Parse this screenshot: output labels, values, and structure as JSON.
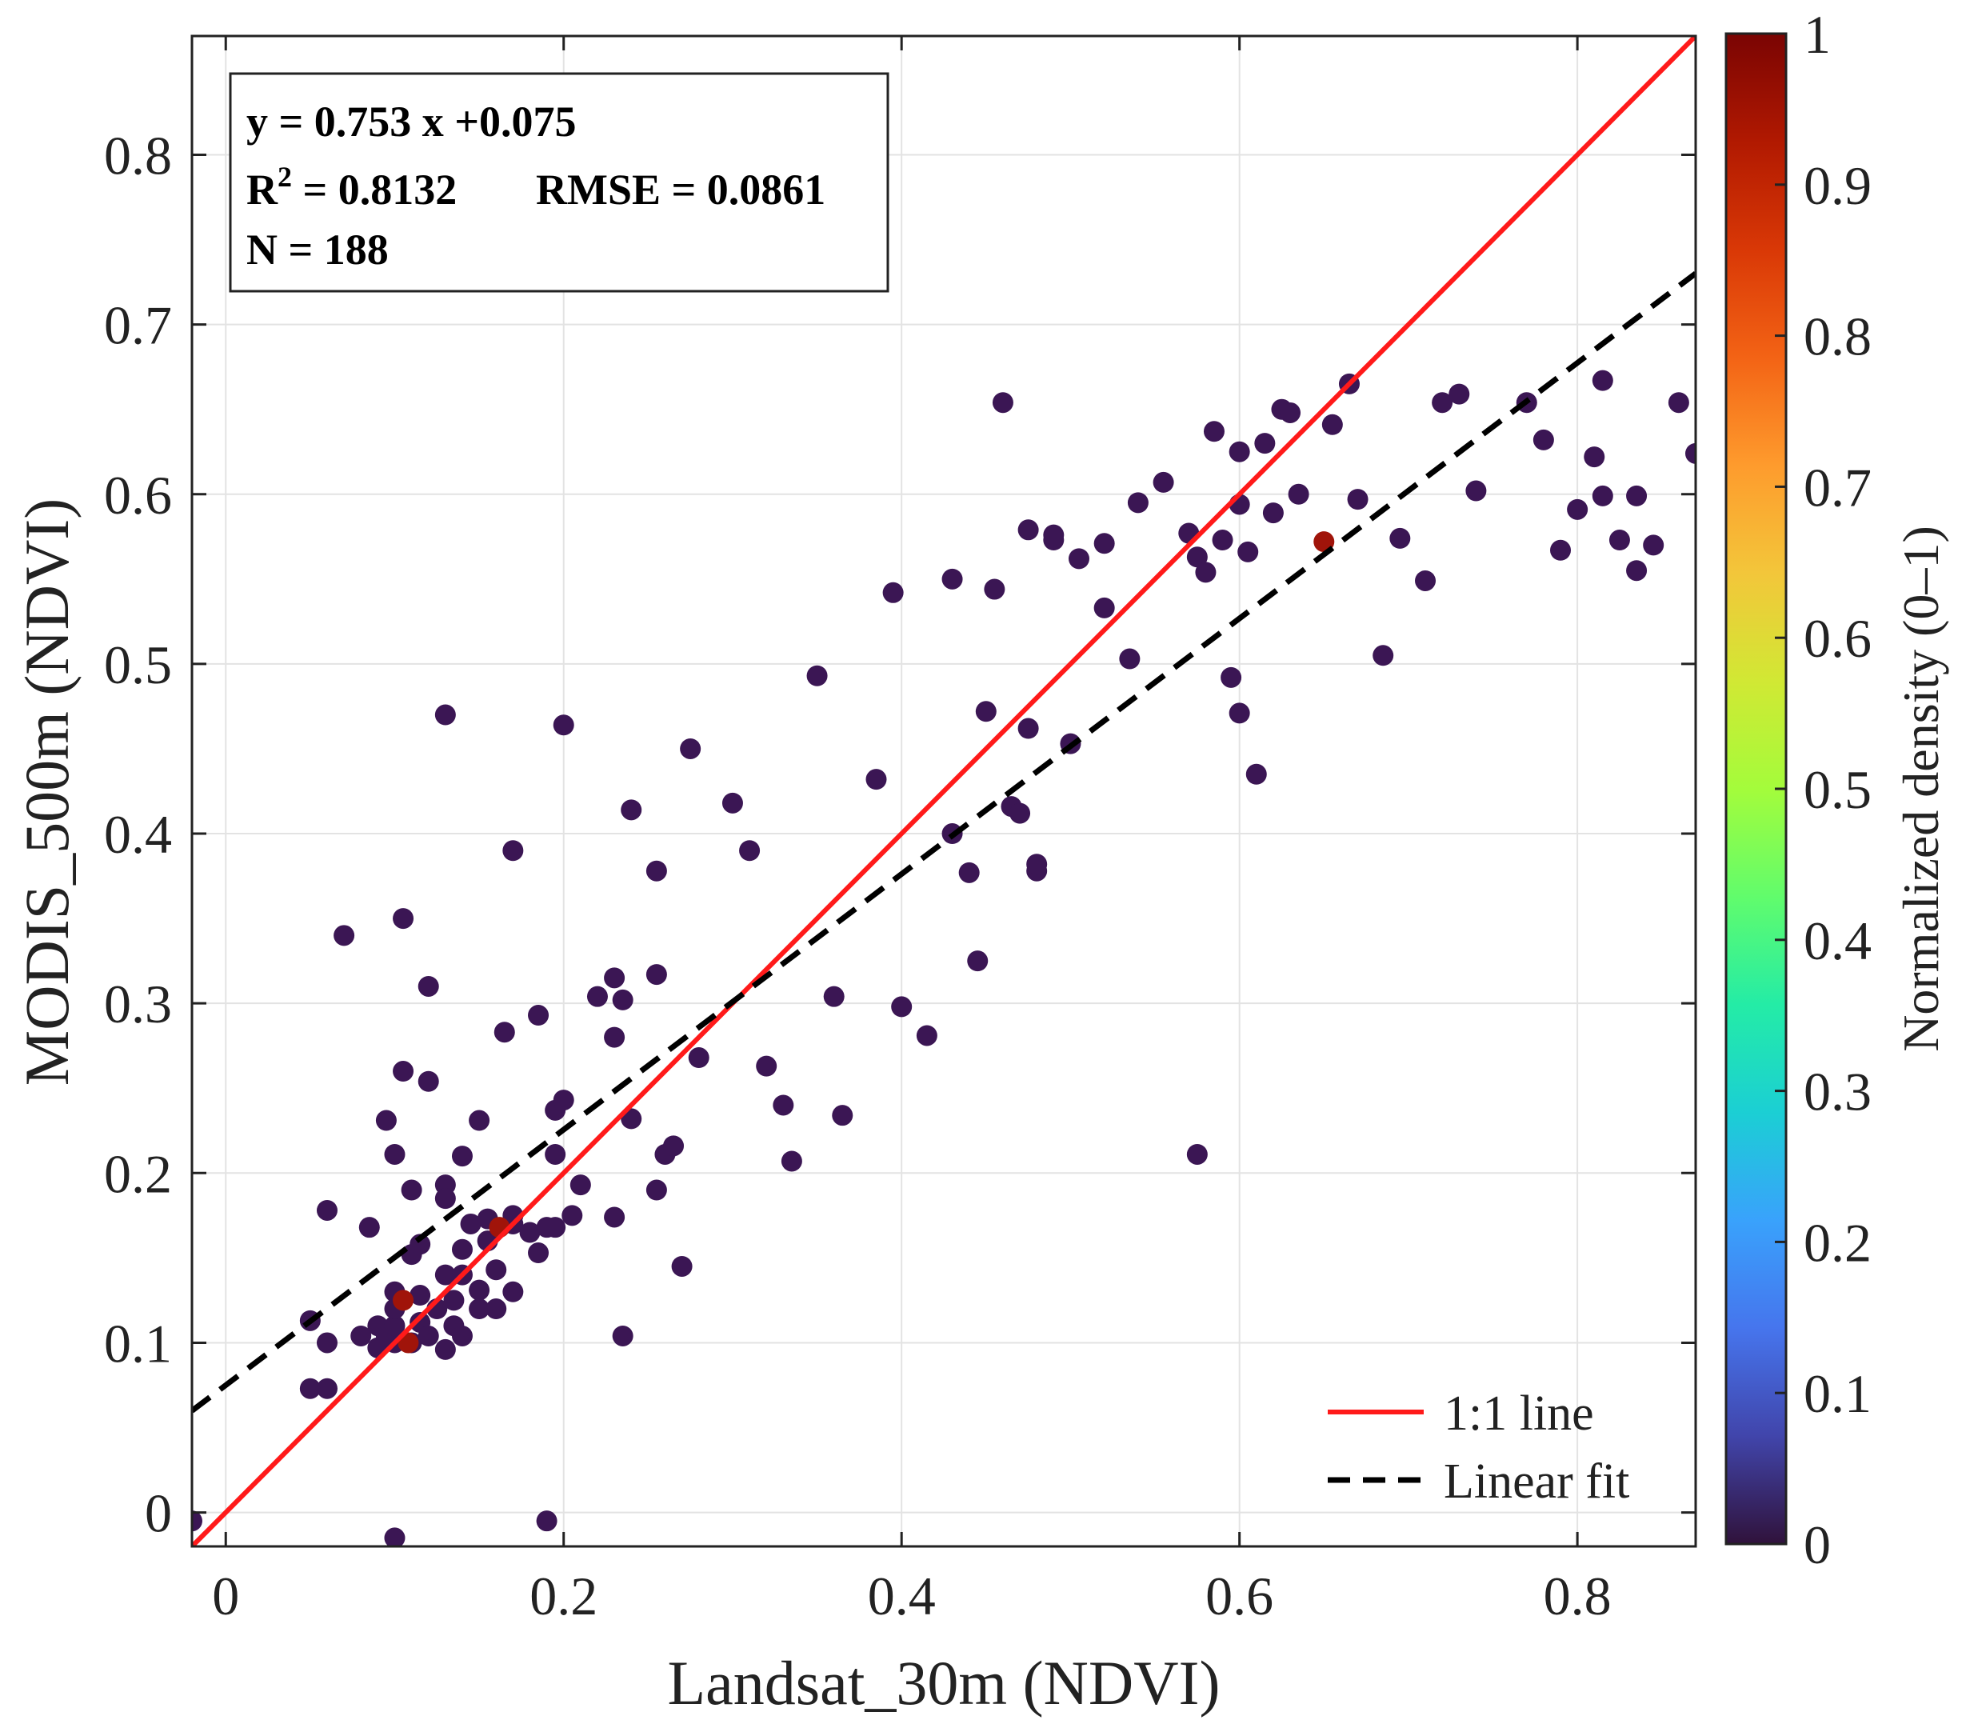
{
  "chart_data": {
    "type": "scatter",
    "xlabel": "Landsat_30m (NDVI)",
    "ylabel": "MODIS_500m (NDVI)",
    "xlim": [
      -0.02,
      0.87
    ],
    "ylim": [
      -0.02,
      0.87
    ],
    "xticks": [
      0,
      0.2,
      0.4,
      0.6,
      0.8
    ],
    "yticks": [
      0,
      0.1,
      0.2,
      0.3,
      0.4,
      0.5,
      0.6,
      0.7,
      0.8
    ],
    "grid": true,
    "stats": {
      "equation": "y = 0.753 x +0.075",
      "r2_label": "R",
      "r2_sup": "2",
      "r2_value": " = 0.8132",
      "rmse": "RMSE = 0.0861",
      "n": "N = 188"
    },
    "lines": [
      {
        "name": "1:1 line",
        "slope": 1,
        "intercept": 0,
        "color": "#ff1a1a",
        "style": "solid"
      },
      {
        "name": "Linear fit",
        "slope": 0.753,
        "intercept": 0.075,
        "color": "#000000",
        "style": "dashed"
      }
    ],
    "legend_position": "bottom-right",
    "colorbar": {
      "label": "Normalized density (0–1)",
      "ticks": [
        "0",
        "0.1",
        "0.2",
        "0.3",
        "0.4",
        "0.5",
        "0.6",
        "0.7",
        "0.8",
        "0.9",
        "1"
      ],
      "colors": [
        "#30123b",
        "#4145ab",
        "#4675ed",
        "#39a2fc",
        "#1bcfd4",
        "#24eca6",
        "#61fc6c",
        "#a4fc3b",
        "#d1e834",
        "#f3c63a",
        "#fe9b2d",
        "#f36315",
        "#d93806",
        "#b11901",
        "#7a0403"
      ]
    },
    "point_color_low": "#3b1654",
    "point_color_high": "#a0140a",
    "points": [
      [
        -0.02,
        -0.005
      ],
      [
        0.1,
        -0.015
      ],
      [
        0.19,
        -0.005
      ],
      [
        0.05,
        0.073
      ],
      [
        0.06,
        0.073
      ],
      [
        0.05,
        0.113
      ],
      [
        0.06,
        0.1
      ],
      [
        0.06,
        0.178
      ],
      [
        0.07,
        0.34
      ],
      [
        0.08,
        0.104
      ],
      [
        0.085,
        0.168
      ],
      [
        0.09,
        0.097
      ],
      [
        0.09,
        0.11
      ],
      [
        0.095,
        0.104
      ],
      [
        0.095,
        0.231
      ],
      [
        0.1,
        0.1
      ],
      [
        0.1,
        0.11
      ],
      [
        0.1,
        0.12
      ],
      [
        0.1,
        0.13
      ],
      [
        0.1,
        0.211
      ],
      [
        0.105,
        0.26
      ],
      [
        0.105,
        0.35
      ],
      [
        0.11,
        0.1
      ],
      [
        0.11,
        0.152
      ],
      [
        0.11,
        0.19
      ],
      [
        0.115,
        0.112
      ],
      [
        0.115,
        0.128
      ],
      [
        0.115,
        0.158
      ],
      [
        0.12,
        0.254
      ],
      [
        0.12,
        0.31
      ],
      [
        0.12,
        0.104
      ],
      [
        0.125,
        0.12
      ],
      [
        0.13,
        0.096
      ],
      [
        0.13,
        0.14
      ],
      [
        0.13,
        0.193
      ],
      [
        0.13,
        0.185
      ],
      [
        0.13,
        0.47
      ],
      [
        0.135,
        0.11
      ],
      [
        0.135,
        0.125
      ],
      [
        0.14,
        0.104
      ],
      [
        0.14,
        0.14
      ],
      [
        0.14,
        0.155
      ],
      [
        0.14,
        0.21
      ],
      [
        0.145,
        0.17
      ],
      [
        0.15,
        0.12
      ],
      [
        0.15,
        0.131
      ],
      [
        0.15,
        0.231
      ],
      [
        0.155,
        0.16
      ],
      [
        0.155,
        0.173
      ],
      [
        0.16,
        0.143
      ],
      [
        0.16,
        0.12
      ],
      [
        0.165,
        0.283
      ],
      [
        0.17,
        0.13
      ],
      [
        0.17,
        0.17
      ],
      [
        0.17,
        0.175
      ],
      [
        0.17,
        0.39
      ],
      [
        0.18,
        0.165
      ],
      [
        0.185,
        0.153
      ],
      [
        0.185,
        0.293
      ],
      [
        0.19,
        0.168
      ],
      [
        0.195,
        0.168
      ],
      [
        0.195,
        0.211
      ],
      [
        0.195,
        0.237
      ],
      [
        0.2,
        0.243
      ],
      [
        0.2,
        0.464
      ],
      [
        0.205,
        0.175
      ],
      [
        0.21,
        0.193
      ],
      [
        0.22,
        0.304
      ],
      [
        0.23,
        0.28
      ],
      [
        0.23,
        0.174
      ],
      [
        0.23,
        0.315
      ],
      [
        0.235,
        0.104
      ],
      [
        0.235,
        0.302
      ],
      [
        0.24,
        0.232
      ],
      [
        0.24,
        0.414
      ],
      [
        0.255,
        0.19
      ],
      [
        0.255,
        0.317
      ],
      [
        0.255,
        0.378
      ],
      [
        0.26,
        0.211
      ],
      [
        0.265,
        0.216
      ],
      [
        0.27,
        0.145
      ],
      [
        0.275,
        0.45
      ],
      [
        0.28,
        0.268
      ],
      [
        0.3,
        0.418
      ],
      [
        0.31,
        0.39
      ],
      [
        0.32,
        0.263
      ],
      [
        0.33,
        0.24
      ],
      [
        0.335,
        0.207
      ],
      [
        0.35,
        0.493
      ],
      [
        0.36,
        0.304
      ],
      [
        0.365,
        0.234
      ],
      [
        0.385,
        0.432
      ],
      [
        0.395,
        0.542
      ],
      [
        0.4,
        0.298
      ],
      [
        0.415,
        0.281
      ],
      [
        0.43,
        0.4
      ],
      [
        0.43,
        0.55
      ],
      [
        0.44,
        0.377
      ],
      [
        0.445,
        0.325
      ],
      [
        0.45,
        0.472
      ],
      [
        0.455,
        0.544
      ],
      [
        0.46,
        0.654
      ],
      [
        0.465,
        0.416
      ],
      [
        0.47,
        0.412
      ],
      [
        0.475,
        0.579
      ],
      [
        0.475,
        0.462
      ],
      [
        0.48,
        0.378
      ],
      [
        0.48,
        0.382
      ],
      [
        0.49,
        0.573
      ],
      [
        0.49,
        0.576
      ],
      [
        0.5,
        0.453
      ],
      [
        0.505,
        0.562
      ],
      [
        0.52,
        0.533
      ],
      [
        0.52,
        0.571
      ],
      [
        0.535,
        0.503
      ],
      [
        0.54,
        0.595
      ],
      [
        0.555,
        0.607
      ],
      [
        0.57,
        0.577
      ],
      [
        0.575,
        0.211
      ],
      [
        0.575,
        0.563
      ],
      [
        0.58,
        0.554
      ],
      [
        0.585,
        0.637
      ],
      [
        0.59,
        0.573
      ],
      [
        0.595,
        0.492
      ],
      [
        0.6,
        0.471
      ],
      [
        0.6,
        0.594
      ],
      [
        0.6,
        0.625
      ],
      [
        0.605,
        0.566
      ],
      [
        0.61,
        0.435
      ],
      [
        0.615,
        0.63
      ],
      [
        0.62,
        0.589
      ],
      [
        0.625,
        0.65
      ],
      [
        0.63,
        0.648
      ],
      [
        0.635,
        0.6
      ],
      [
        0.655,
        0.641
      ],
      [
        0.665,
        0.665
      ],
      [
        0.67,
        0.597
      ],
      [
        0.685,
        0.505
      ],
      [
        0.695,
        0.574
      ],
      [
        0.71,
        0.549
      ],
      [
        0.72,
        0.654
      ],
      [
        0.73,
        0.659
      ],
      [
        0.74,
        0.602
      ],
      [
        0.77,
        0.654
      ],
      [
        0.78,
        0.632
      ],
      [
        0.79,
        0.567
      ],
      [
        0.8,
        0.591
      ],
      [
        0.81,
        0.622
      ],
      [
        0.815,
        0.667
      ],
      [
        0.815,
        0.599
      ],
      [
        0.825,
        0.573
      ],
      [
        0.835,
        0.599
      ],
      [
        0.835,
        0.555
      ],
      [
        0.845,
        0.57
      ],
      [
        0.86,
        0.654
      ],
      [
        0.87,
        0.624
      ]
    ],
    "hot_points": [
      [
        0.65,
        0.572
      ],
      [
        0.108,
        0.1
      ],
      [
        0.105,
        0.125
      ],
      [
        0.162,
        0.168
      ]
    ]
  }
}
